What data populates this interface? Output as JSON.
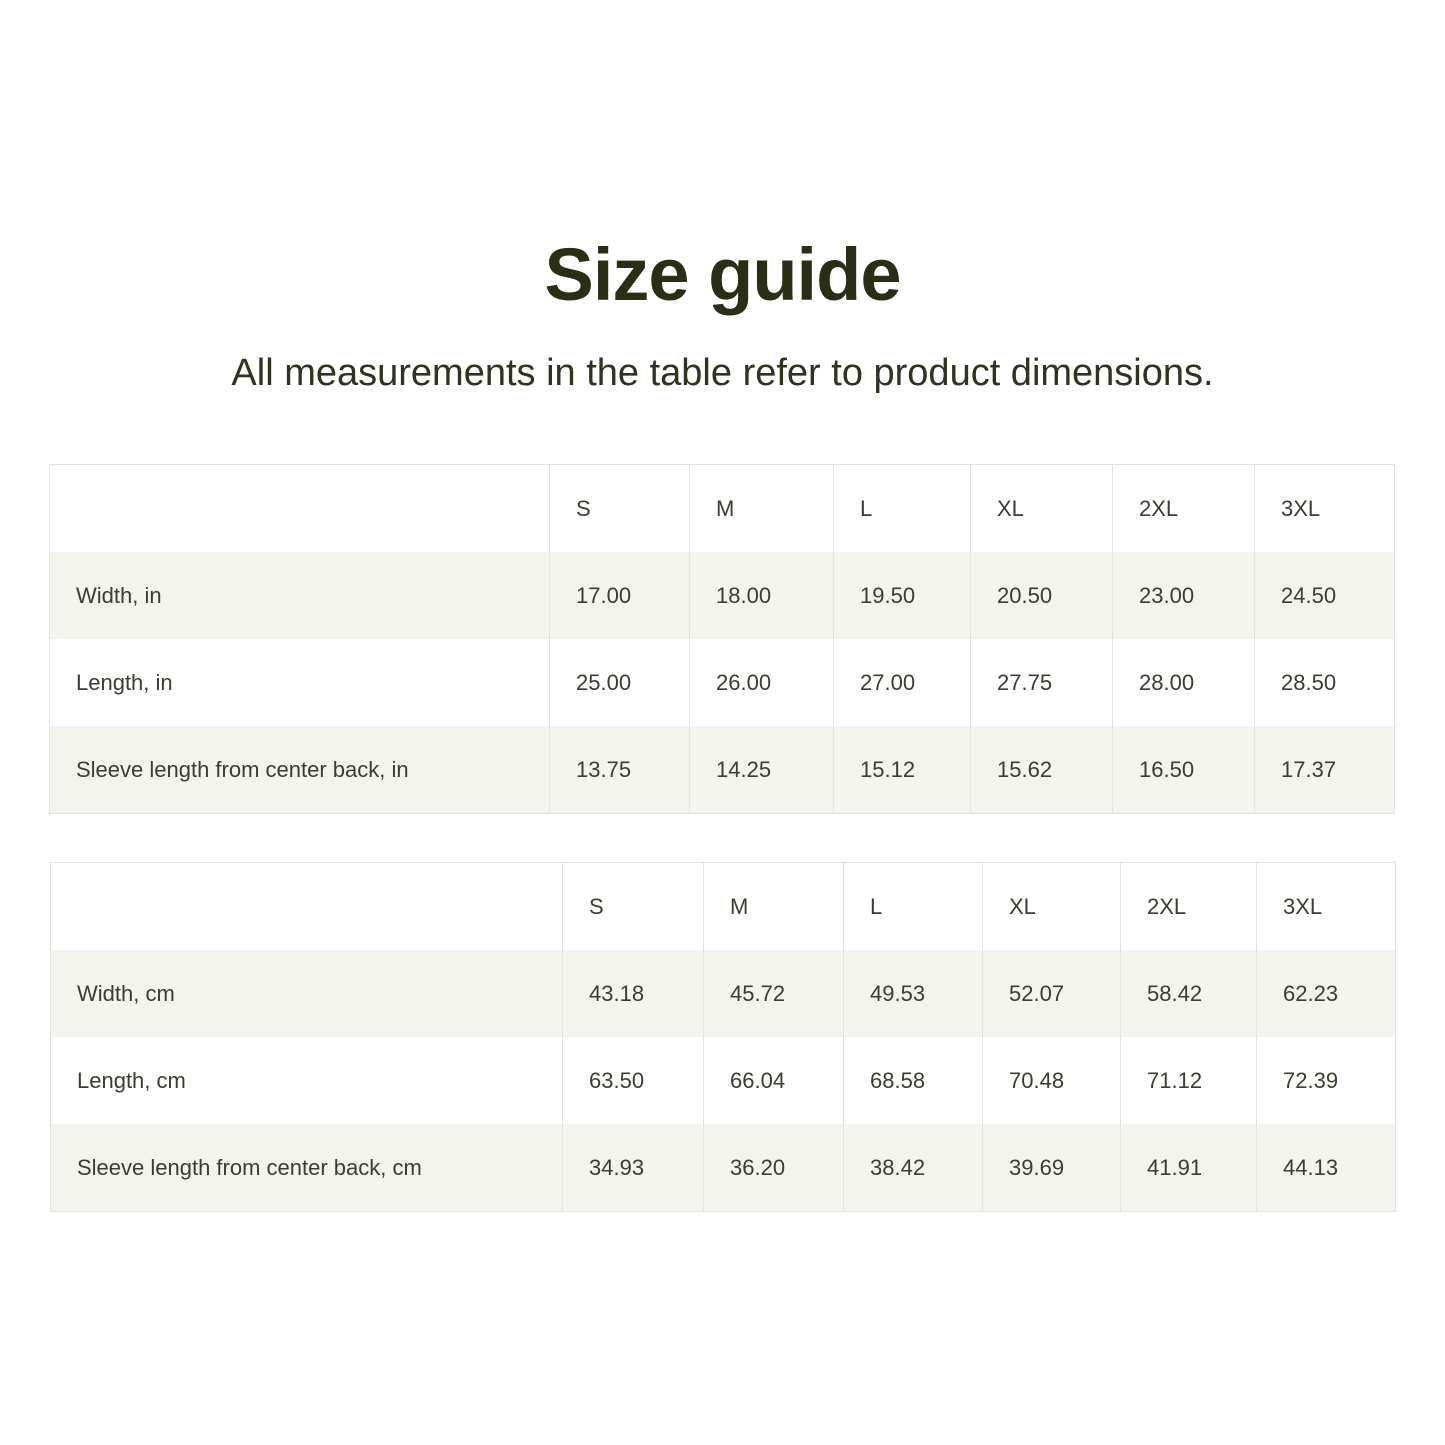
{
  "title": "Size guide",
  "subtitle": "All measurements in the table refer to product dimensions.",
  "tables": [
    {
      "headers": [
        "",
        "S",
        "M",
        "L",
        "XL",
        "2XL",
        "3XL"
      ],
      "rows": [
        [
          "Width, in",
          "17.00",
          "18.00",
          "19.50",
          "20.50",
          "23.00",
          "24.50"
        ],
        [
          "Length, in",
          "25.00",
          "26.00",
          "27.00",
          "27.75",
          "28.00",
          "28.50"
        ],
        [
          "Sleeve length from center back, in",
          "13.75",
          "14.25",
          "15.12",
          "15.62",
          "16.50",
          "17.37"
        ]
      ]
    },
    {
      "headers": [
        "",
        "S",
        "M",
        "L",
        "XL",
        "2XL",
        "3XL"
      ],
      "rows": [
        [
          "Width, cm",
          "43.18",
          "45.72",
          "49.53",
          "52.07",
          "58.42",
          "62.23"
        ],
        [
          "Length, cm",
          "63.50",
          "66.04",
          "68.58",
          "70.48",
          "71.12",
          "72.39"
        ],
        [
          "Sleeve length from center back, cm",
          "34.93",
          "36.20",
          "38.42",
          "39.69",
          "41.91",
          "44.13"
        ]
      ]
    }
  ]
}
